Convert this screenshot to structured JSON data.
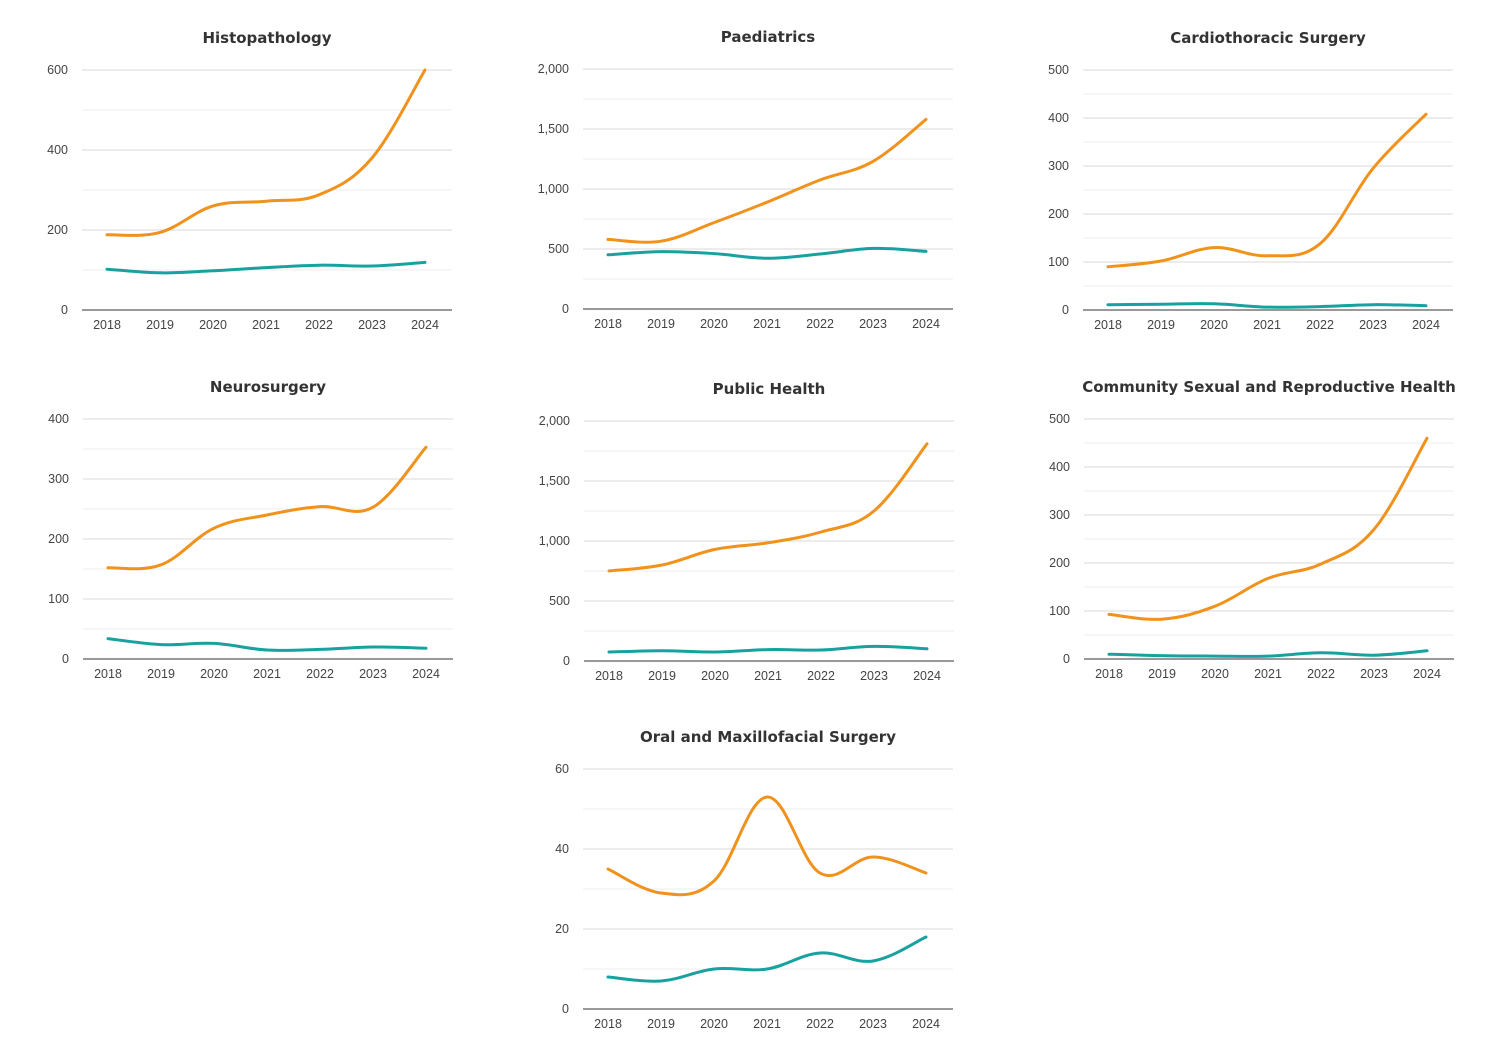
{
  "colors": {
    "orange": "#F0921C",
    "teal": "#17A2A0",
    "gridline": "#d9d9d9",
    "minor_gridline": "#ededed",
    "axis_line": "#333333",
    "title_text": "#333333",
    "tick_text": "#444444"
  },
  "chart_data": [
    {
      "type": "line",
      "title": "Histopathology",
      "categories": [
        "2018",
        "2019",
        "2020",
        "2021",
        "2022",
        "2023",
        "2024"
      ],
      "ylim": [
        0,
        600
      ],
      "yticks": [
        0,
        200,
        400,
        600
      ],
      "ytick_labels": [
        "0",
        "200",
        "400",
        "600"
      ],
      "grid": true,
      "series": [
        {
          "color": "orange",
          "values": [
            188,
            194,
            260,
            272,
            288,
            380,
            600
          ]
        },
        {
          "color": "teal",
          "values": [
            102,
            93,
            98,
            106,
            112,
            110,
            119
          ]
        }
      ]
    },
    {
      "type": "line",
      "title": "Paediatrics",
      "categories": [
        "2018",
        "2019",
        "2020",
        "2021",
        "2022",
        "2023",
        "2024"
      ],
      "ylim": [
        0,
        2000
      ],
      "yticks": [
        0,
        500,
        1000,
        1500,
        2000
      ],
      "ytick_labels": [
        "0",
        "500",
        "1,000",
        "1,500",
        "2,000"
      ],
      "grid": true,
      "series": [
        {
          "color": "orange",
          "values": [
            580,
            565,
            720,
            890,
            1075,
            1230,
            1580
          ]
        },
        {
          "color": "teal",
          "values": [
            452,
            478,
            462,
            423,
            458,
            505,
            480
          ]
        }
      ]
    },
    {
      "type": "line",
      "title": "Cardiothoracic Surgery",
      "categories": [
        "2018",
        "2019",
        "2020",
        "2021",
        "2022",
        "2023",
        "2024"
      ],
      "ylim": [
        0,
        500
      ],
      "yticks": [
        0,
        100,
        200,
        300,
        400,
        500
      ],
      "ytick_labels": [
        "0",
        "100",
        "200",
        "300",
        "400",
        "500"
      ],
      "grid": true,
      "series": [
        {
          "color": "orange",
          "values": [
            90,
            102,
            130,
            113,
            138,
            295,
            408
          ]
        },
        {
          "color": "teal",
          "values": [
            11,
            12,
            13,
            6,
            7,
            11,
            9
          ]
        }
      ]
    },
    {
      "type": "line",
      "title": "Neurosurgery",
      "categories": [
        "2018",
        "2019",
        "2020",
        "2021",
        "2022",
        "2023",
        "2024"
      ],
      "ylim": [
        0,
        400
      ],
      "yticks": [
        0,
        100,
        200,
        300,
        400
      ],
      "ytick_labels": [
        "0",
        "100",
        "200",
        "300",
        "400"
      ],
      "grid": true,
      "series": [
        {
          "color": "orange",
          "values": [
            152,
            157,
            218,
            240,
            254,
            253,
            353
          ]
        },
        {
          "color": "teal",
          "values": [
            34,
            24,
            26,
            15,
            16,
            20,
            18
          ]
        }
      ]
    },
    {
      "type": "line",
      "title": "Public Health",
      "categories": [
        "2018",
        "2019",
        "2020",
        "2021",
        "2022",
        "2023",
        "2024"
      ],
      "ylim": [
        0,
        2000
      ],
      "yticks": [
        0,
        500,
        1000,
        1500,
        2000
      ],
      "ytick_labels": [
        "0",
        "500",
        "1,000",
        "1,500",
        "2,000"
      ],
      "grid": true,
      "series": [
        {
          "color": "orange",
          "values": [
            750,
            800,
            930,
            985,
            1075,
            1250,
            1810
          ]
        },
        {
          "color": "teal",
          "values": [
            75,
            85,
            75,
            95,
            92,
            122,
            102
          ]
        }
      ]
    },
    {
      "type": "line",
      "title": "Community Sexual and Reproductive Health",
      "categories": [
        "2018",
        "2019",
        "2020",
        "2021",
        "2022",
        "2023",
        "2024"
      ],
      "ylim": [
        0,
        500
      ],
      "yticks": [
        0,
        100,
        200,
        300,
        400,
        500
      ],
      "ytick_labels": [
        "0",
        "100",
        "200",
        "300",
        "400",
        "500"
      ],
      "grid": true,
      "series": [
        {
          "color": "orange",
          "values": [
            93,
            83,
            110,
            168,
            198,
            270,
            460
          ]
        },
        {
          "color": "teal",
          "values": [
            10,
            7,
            6,
            6,
            13,
            8,
            17
          ]
        }
      ]
    },
    {
      "type": "line",
      "title": "Oral and Maxillofacial Surgery",
      "categories": [
        "2018",
        "2019",
        "2020",
        "2021",
        "2022",
        "2023",
        "2024"
      ],
      "ylim": [
        0,
        60
      ],
      "yticks": [
        0,
        20,
        40,
        60
      ],
      "ytick_labels": [
        "0",
        "20",
        "40",
        "60"
      ],
      "grid": true,
      "series": [
        {
          "color": "orange",
          "values": [
            35,
            29,
            32,
            53,
            34,
            38,
            34
          ]
        },
        {
          "color": "teal",
          "values": [
            8,
            7,
            10,
            10,
            14,
            12,
            18
          ]
        }
      ]
    }
  ]
}
